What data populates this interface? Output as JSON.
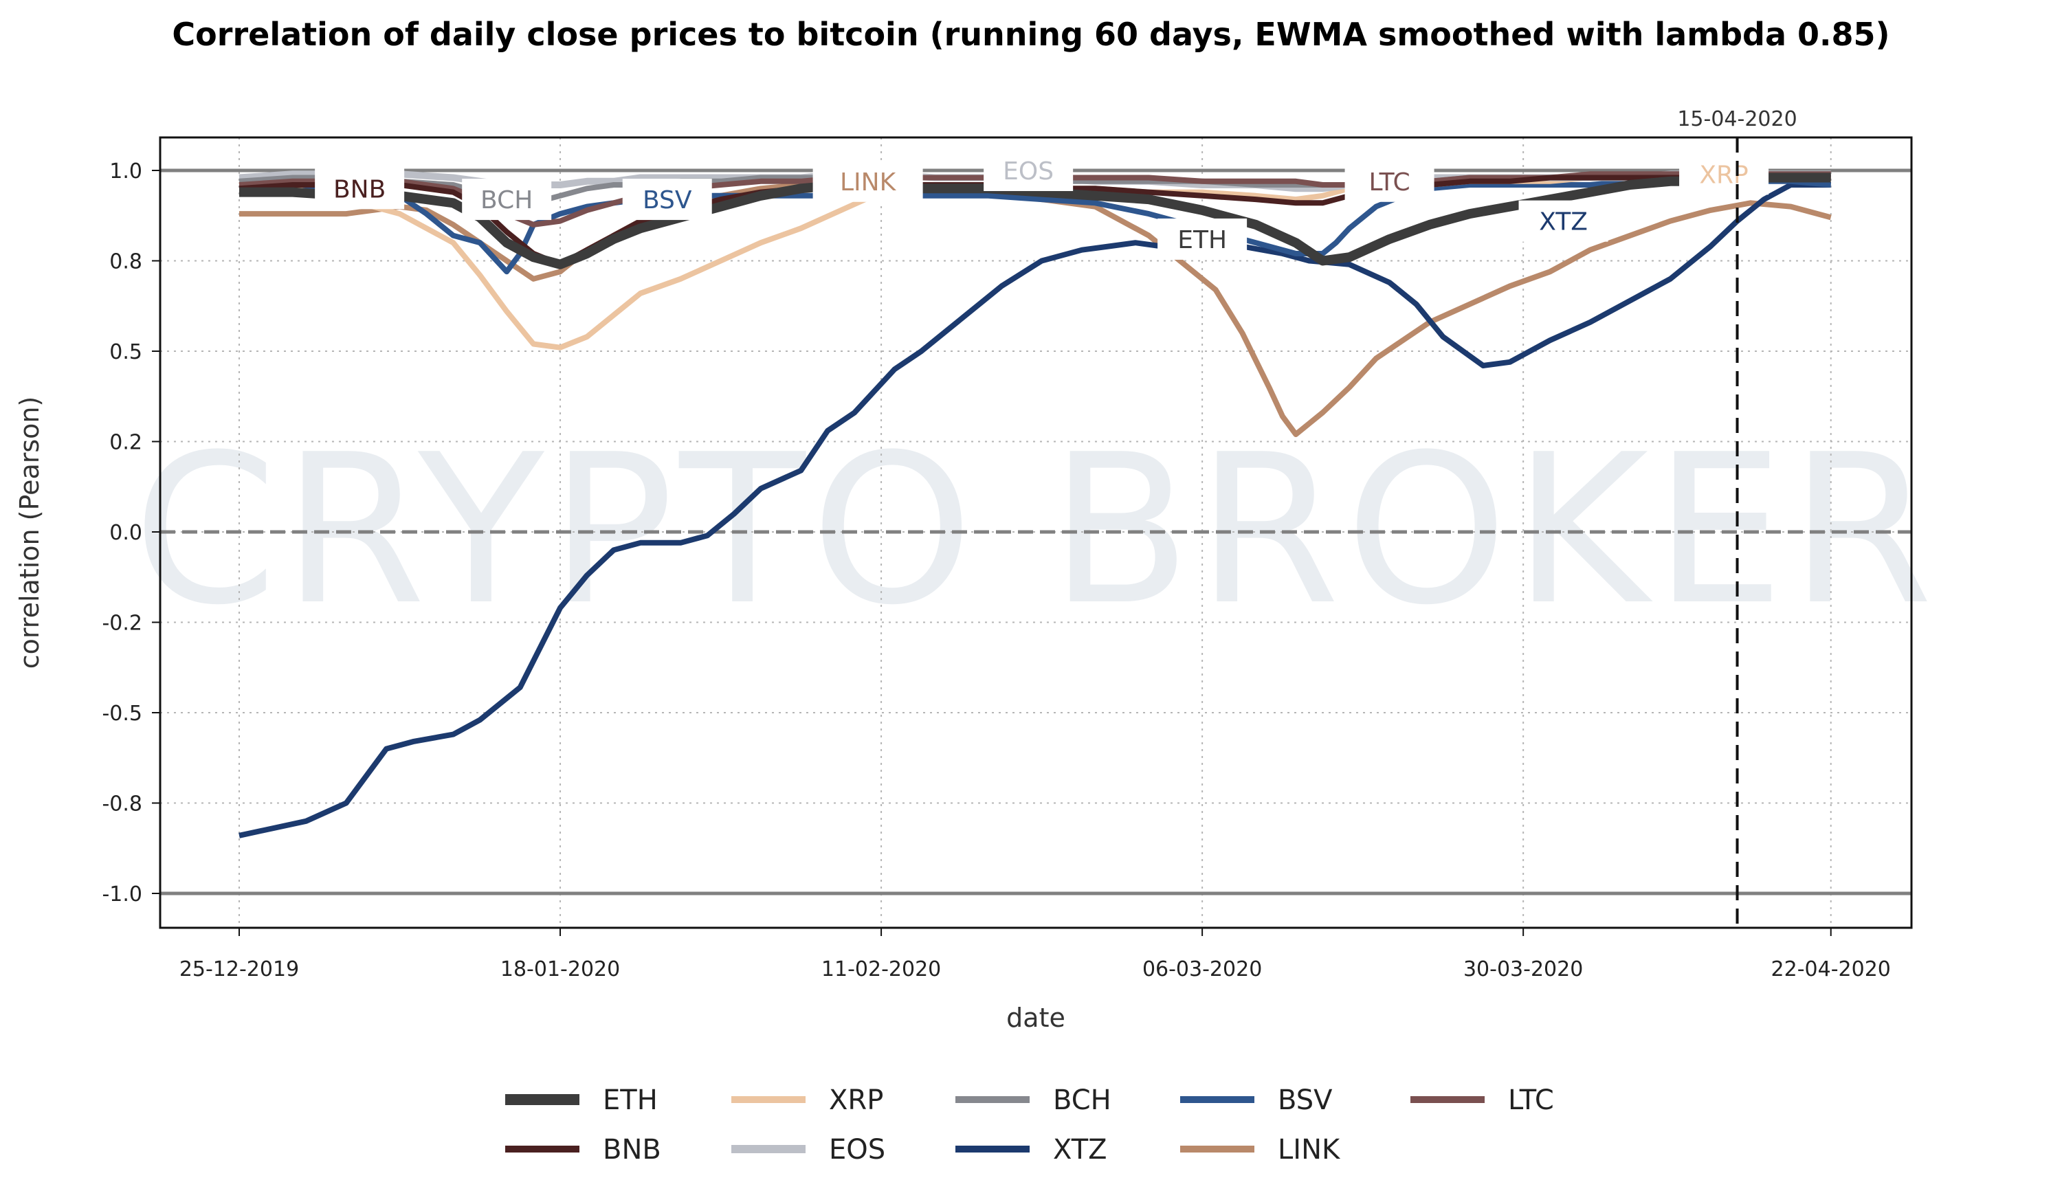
{
  "chart_data": {
    "type": "line",
    "title": "Correlation of daily close prices to bitcoin (running 60 days, EWMA smoothed with lambda 0.85)",
    "xlabel": "date",
    "ylabel": "correlation (Pearson)",
    "watermark": "CRYPTO BROKER",
    "x_start_date": "25-12-2019",
    "x_unit": "days since 25-12-2019",
    "xlim": [
      -11,
      128
    ],
    "ylim": [
      -1.08,
      1.07
    ],
    "grid": true,
    "x_ticks": [
      {
        "day": 0,
        "label": "25-12-2019"
      },
      {
        "day": 24,
        "label": "18-01-2020"
      },
      {
        "day": 48,
        "label": "11-02-2020"
      },
      {
        "day": 72,
        "label": "06-03-2020"
      },
      {
        "day": 96,
        "label": "30-03-2020"
      },
      {
        "day": 119,
        "label": "22-04-2020"
      }
    ],
    "y_ticks": [
      {
        "value": 1.0,
        "label": "1.0"
      },
      {
        "value": 0.75,
        "label": "0.8"
      },
      {
        "value": 0.5,
        "label": "0.5"
      },
      {
        "value": 0.25,
        "label": "0.2"
      },
      {
        "value": 0.0,
        "label": "0.0"
      },
      {
        "value": -0.25,
        "label": "-0.2"
      },
      {
        "value": -0.5,
        "label": "-0.5"
      },
      {
        "value": -0.75,
        "label": "-0.8"
      },
      {
        "value": -1.0,
        "label": "-1.0"
      }
    ],
    "reference_lines": [
      {
        "value": 1.0,
        "style": "solid"
      },
      {
        "value": -1.0,
        "style": "solid"
      },
      {
        "value": 0.0,
        "style": "dashed"
      }
    ],
    "vertical_marker": {
      "day": 112,
      "label": "15-04-2020",
      "style": "dashed"
    },
    "legend": {
      "placement": "bottom-center",
      "columns": 5
    },
    "series": [
      {
        "name": "ETH",
        "color": "#3c3c3c",
        "label_day": 72,
        "label_value": 0.81,
        "x": [
          0,
          4,
          8,
          12,
          16,
          18,
          20,
          22,
          24,
          26,
          28,
          30,
          33,
          36,
          39,
          42,
          45,
          48,
          52,
          56,
          60,
          64,
          68,
          72,
          76,
          79,
          81,
          83,
          86,
          89,
          92,
          95,
          98,
          101,
          104,
          107,
          110,
          113,
          116,
          119
        ],
        "values": [
          0.94,
          0.94,
          0.93,
          0.93,
          0.91,
          0.87,
          0.8,
          0.76,
          0.74,
          0.77,
          0.81,
          0.84,
          0.87,
          0.9,
          0.93,
          0.95,
          0.96,
          0.95,
          0.95,
          0.95,
          0.94,
          0.93,
          0.92,
          0.89,
          0.85,
          0.8,
          0.75,
          0.76,
          0.81,
          0.85,
          0.88,
          0.9,
          0.92,
          0.94,
          0.96,
          0.97,
          0.97,
          0.98,
          0.98,
          0.98
        ]
      },
      {
        "name": "BNB",
        "color": "#4a2020",
        "label_day": 9,
        "label_value": 0.95,
        "x": [
          0,
          4,
          8,
          12,
          16,
          18,
          20,
          22,
          24,
          26,
          28,
          30,
          33,
          36,
          39,
          42,
          45,
          48,
          52,
          56,
          60,
          64,
          68,
          72,
          76,
          79,
          81,
          83,
          86,
          89,
          92,
          95,
          98,
          101,
          104,
          107,
          110,
          113,
          116,
          119
        ],
        "values": [
          0.95,
          0.96,
          0.96,
          0.96,
          0.94,
          0.9,
          0.83,
          0.77,
          0.74,
          0.78,
          0.82,
          0.86,
          0.89,
          0.92,
          0.94,
          0.95,
          0.96,
          0.96,
          0.96,
          0.96,
          0.95,
          0.95,
          0.94,
          0.93,
          0.92,
          0.91,
          0.91,
          0.93,
          0.95,
          0.96,
          0.97,
          0.97,
          0.98,
          0.98,
          0.98,
          0.98,
          0.98,
          0.98,
          0.98,
          0.98
        ]
      },
      {
        "name": "XRP",
        "color": "#ecc4a0",
        "label_day": 111,
        "label_value": 0.99,
        "x": [
          0,
          4,
          8,
          12,
          16,
          18,
          20,
          22,
          24,
          26,
          28,
          30,
          33,
          36,
          39,
          42,
          45,
          48,
          52,
          56,
          60,
          64,
          68,
          72,
          76,
          79,
          81,
          83,
          86,
          89,
          92,
          95,
          98,
          101,
          104,
          107,
          110,
          113,
          116,
          119
        ],
        "values": [
          0.97,
          0.95,
          0.92,
          0.88,
          0.8,
          0.71,
          0.61,
          0.52,
          0.51,
          0.54,
          0.6,
          0.66,
          0.7,
          0.75,
          0.8,
          0.84,
          0.89,
          0.94,
          0.95,
          0.95,
          0.95,
          0.95,
          0.94,
          0.94,
          0.93,
          0.92,
          0.93,
          0.95,
          0.96,
          0.96,
          0.97,
          0.97,
          0.97,
          0.98,
          0.98,
          0.98,
          0.98,
          0.98,
          0.98,
          0.98
        ]
      },
      {
        "name": "EOS",
        "color": "#bcbfc7",
        "label_day": 59,
        "label_value": 1.0,
        "x": [
          0,
          4,
          8,
          12,
          16,
          18,
          20,
          22,
          24,
          26,
          28,
          30,
          33,
          36,
          39,
          42,
          45,
          48,
          52,
          56,
          60,
          64,
          68,
          72,
          76,
          79,
          81,
          83,
          86,
          89,
          92,
          95,
          98,
          101,
          104,
          107,
          110,
          113,
          116,
          119
        ],
        "values": [
          0.98,
          0.99,
          0.99,
          0.99,
          0.98,
          0.97,
          0.96,
          0.96,
          0.96,
          0.97,
          0.97,
          0.98,
          0.98,
          0.98,
          0.98,
          0.98,
          0.99,
          0.99,
          0.98,
          0.98,
          0.98,
          0.97,
          0.97,
          0.96,
          0.96,
          0.95,
          0.95,
          0.96,
          0.97,
          0.98,
          0.98,
          0.98,
          0.98,
          0.98,
          0.98,
          0.99,
          0.99,
          0.99,
          0.99,
          0.99
        ]
      },
      {
        "name": "BCH",
        "color": "#86888e",
        "label_day": 20,
        "label_value": 0.92,
        "x": [
          0,
          4,
          8,
          12,
          16,
          18,
          20,
          22,
          24,
          26,
          28,
          30,
          33,
          36,
          39,
          42,
          45,
          48,
          52,
          56,
          60,
          64,
          68,
          72,
          76,
          79,
          81,
          83,
          86,
          89,
          92,
          95,
          98,
          101,
          104,
          107,
          110,
          113,
          116,
          119
        ],
        "values": [
          0.97,
          0.98,
          0.98,
          0.97,
          0.96,
          0.94,
          0.92,
          0.91,
          0.93,
          0.95,
          0.96,
          0.96,
          0.97,
          0.97,
          0.98,
          0.98,
          0.98,
          0.98,
          0.98,
          0.98,
          0.97,
          0.97,
          0.97,
          0.97,
          0.96,
          0.96,
          0.96,
          0.96,
          0.97,
          0.97,
          0.98,
          0.98,
          0.98,
          0.98,
          0.98,
          0.99,
          0.99,
          0.99,
          0.99,
          0.99
        ]
      },
      {
        "name": "XTZ",
        "color": "#1c3a6e",
        "label_day": 99,
        "label_value": 0.86,
        "x": [
          0,
          5,
          8,
          11,
          13,
          16,
          18,
          21,
          24,
          26,
          28,
          30,
          33,
          35,
          37,
          39,
          42,
          44,
          46,
          49,
          51,
          54,
          57,
          60,
          63,
          65,
          67,
          69,
          72,
          75,
          78,
          80,
          83,
          86,
          88,
          90,
          93,
          95,
          98,
          101,
          104,
          107,
          110,
          112,
          114,
          116,
          119
        ],
        "values": [
          -0.84,
          -0.8,
          -0.75,
          -0.6,
          -0.58,
          -0.56,
          -0.52,
          -0.43,
          -0.21,
          -0.12,
          -0.05,
          -0.03,
          -0.03,
          -0.01,
          0.05,
          0.12,
          0.17,
          0.28,
          0.33,
          0.45,
          0.5,
          0.59,
          0.68,
          0.75,
          0.78,
          0.79,
          0.8,
          0.79,
          0.79,
          0.79,
          0.77,
          0.75,
          0.74,
          0.69,
          0.63,
          0.54,
          0.46,
          0.47,
          0.53,
          0.58,
          0.64,
          0.7,
          0.79,
          0.86,
          0.92,
          0.96,
          0.96
        ]
      },
      {
        "name": "BSV",
        "color": "#2e568e",
        "label_day": 32,
        "label_value": 0.92,
        "x": [
          0,
          4,
          8,
          12,
          14,
          16,
          18,
          20,
          21,
          22,
          24,
          26,
          28,
          30,
          33,
          36,
          39,
          42,
          45,
          48,
          52,
          56,
          60,
          64,
          68,
          72,
          76,
          79,
          81,
          82,
          83,
          85,
          87,
          89,
          92,
          95,
          98,
          101,
          104,
          107,
          110,
          113,
          116,
          119
        ],
        "values": [
          0.96,
          0.96,
          0.95,
          0.93,
          0.88,
          0.82,
          0.8,
          0.72,
          0.77,
          0.85,
          0.88,
          0.9,
          0.91,
          0.92,
          0.93,
          0.93,
          0.93,
          0.93,
          0.93,
          0.93,
          0.93,
          0.93,
          0.92,
          0.91,
          0.88,
          0.84,
          0.8,
          0.77,
          0.77,
          0.8,
          0.84,
          0.9,
          0.93,
          0.95,
          0.96,
          0.96,
          0.96,
          0.96,
          0.97,
          0.97,
          0.97,
          0.97,
          0.97,
          0.96
        ]
      },
      {
        "name": "LTC",
        "color": "#7a5050",
        "label_day": 86,
        "label_value": 0.97,
        "x": [
          0,
          4,
          8,
          12,
          16,
          18,
          20,
          22,
          24,
          26,
          28,
          30,
          33,
          36,
          39,
          42,
          45,
          48,
          52,
          56,
          60,
          64,
          68,
          72,
          76,
          79,
          81,
          83,
          86,
          89,
          92,
          95,
          98,
          101,
          104,
          107,
          110,
          113,
          116,
          119
        ],
        "values": [
          0.96,
          0.97,
          0.97,
          0.97,
          0.95,
          0.92,
          0.88,
          0.85,
          0.86,
          0.89,
          0.91,
          0.93,
          0.95,
          0.96,
          0.97,
          0.97,
          0.98,
          0.98,
          0.98,
          0.98,
          0.98,
          0.98,
          0.98,
          0.97,
          0.97,
          0.97,
          0.96,
          0.96,
          0.97,
          0.97,
          0.98,
          0.98,
          0.98,
          0.99,
          0.99,
          0.99,
          0.99,
          0.99,
          0.99,
          0.99
        ]
      },
      {
        "name": "LINK",
        "color": "#b9896a",
        "label_day": 47,
        "label_value": 0.97,
        "x": [
          0,
          4,
          8,
          12,
          14,
          16,
          18,
          20,
          22,
          24,
          26,
          28,
          30,
          33,
          36,
          39,
          42,
          45,
          48,
          52,
          56,
          60,
          64,
          68,
          71,
          73,
          75,
          77,
          78,
          79,
          80,
          81,
          83,
          85,
          87,
          89,
          92,
          95,
          98,
          101,
          104,
          107,
          110,
          113,
          116,
          119
        ],
        "values": [
          0.88,
          0.88,
          0.88,
          0.9,
          0.89,
          0.85,
          0.8,
          0.75,
          0.7,
          0.72,
          0.78,
          0.82,
          0.86,
          0.9,
          0.93,
          0.95,
          0.96,
          0.96,
          0.96,
          0.95,
          0.94,
          0.92,
          0.9,
          0.82,
          0.73,
          0.67,
          0.55,
          0.4,
          0.32,
          0.27,
          0.3,
          0.33,
          0.4,
          0.48,
          0.53,
          0.58,
          0.63,
          0.68,
          0.72,
          0.78,
          0.82,
          0.86,
          0.89,
          0.91,
          0.9,
          0.87
        ]
      }
    ]
  }
}
